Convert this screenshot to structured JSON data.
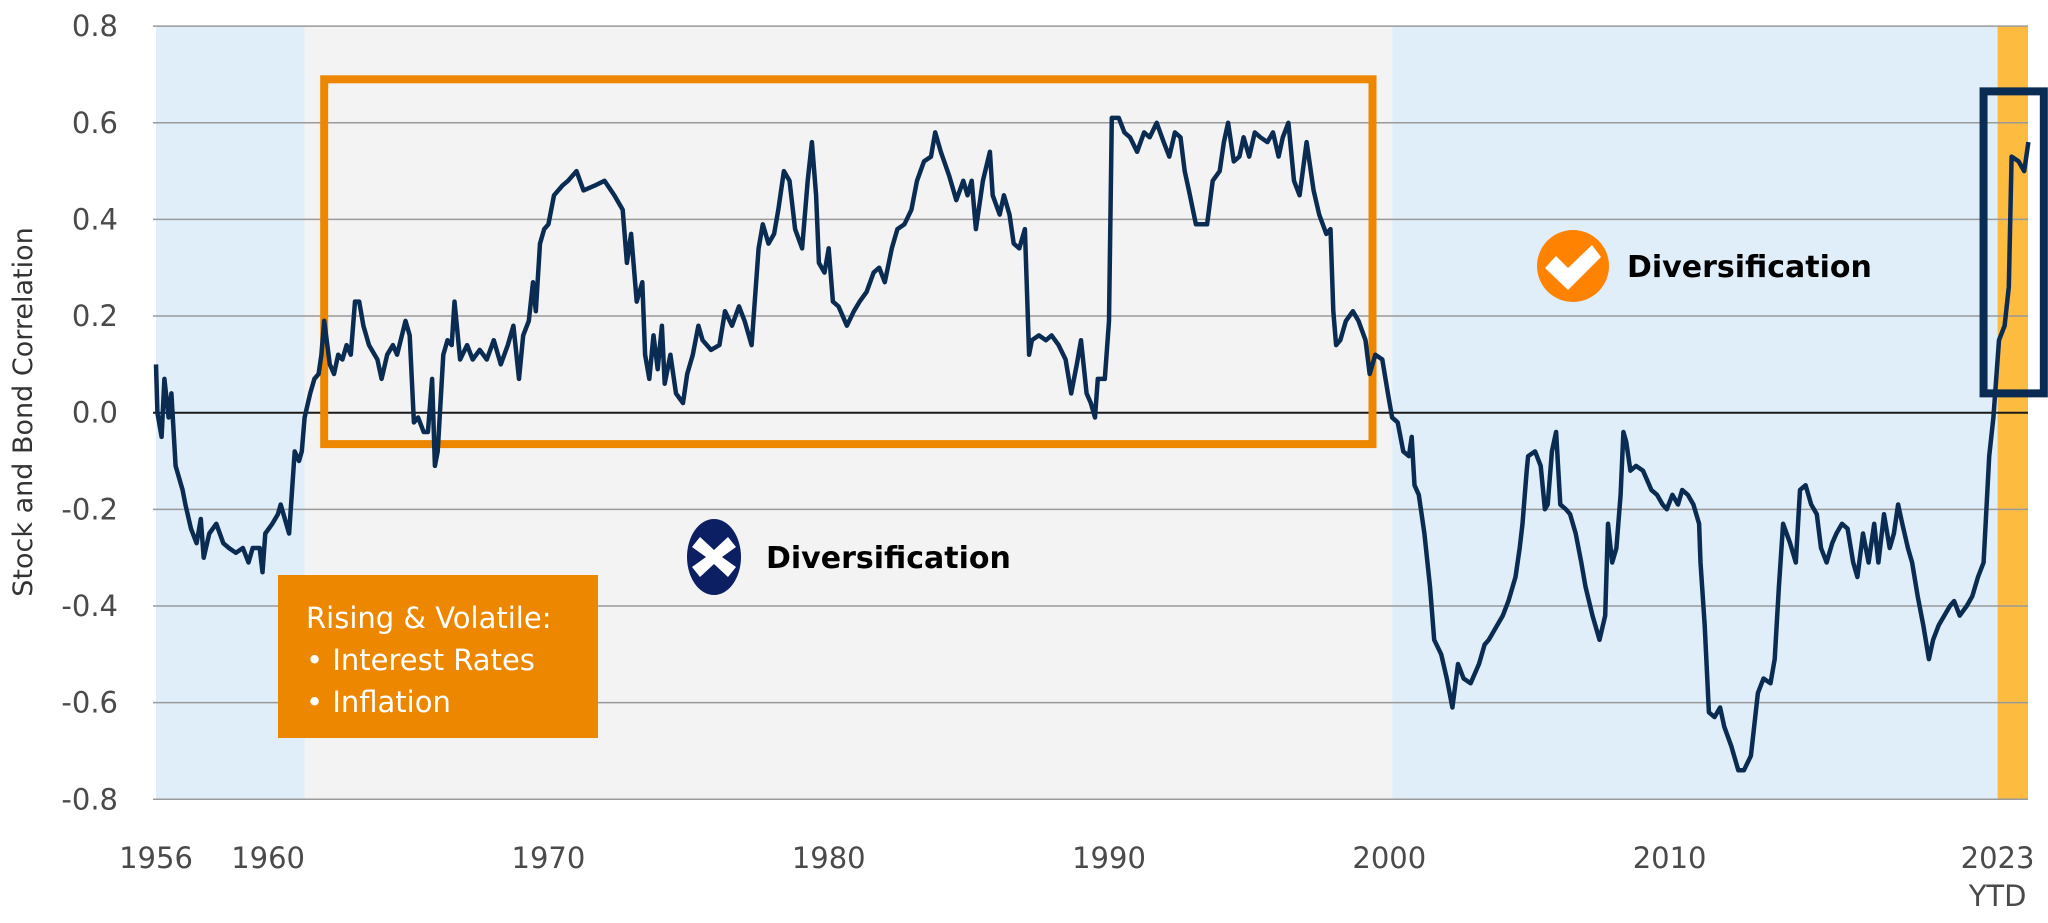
{
  "chart_data": {
    "type": "line",
    "title": "",
    "xlabel": "",
    "ylabel": "Stock and Bond Correlation",
    "ylim": [
      -0.8,
      0.8
    ],
    "xlim": [
      1956,
      2022.8
    ],
    "grid": true,
    "y_ticks": [
      {
        "value": 0.8,
        "label": "0.8"
      },
      {
        "value": 0.6,
        "label": "0.6"
      },
      {
        "value": 0.4,
        "label": "0.4"
      },
      {
        "value": 0.2,
        "label": "0.2"
      },
      {
        "value": 0.0,
        "label": "0.0"
      },
      {
        "value": -0.2,
        "label": "-0.2"
      },
      {
        "value": -0.4,
        "label": "-0.4"
      },
      {
        "value": -0.6,
        "label": "-0.6"
      },
      {
        "value": -0.8,
        "label": "-0.8"
      }
    ],
    "x_ticks": [
      {
        "value": 1956,
        "label": "1956"
      },
      {
        "value": 1960,
        "label": "1960"
      },
      {
        "value": 1970,
        "label": "1970"
      },
      {
        "value": 1980,
        "label": "1980"
      },
      {
        "value": 1990,
        "label": "1990"
      },
      {
        "value": 2000,
        "label": "2000"
      },
      {
        "value": 2010,
        "label": "2010"
      }
    ],
    "last_tick": {
      "label": "2023",
      "sublabel": "YTD"
    },
    "colors": {
      "line": "#0b2c52",
      "region_blue": "#e0eef9",
      "region_gray": "#f3f3f3",
      "region_ytd": "#fdbb40",
      "highlight_orange": "#ee8700",
      "highlight_navy": "#0b2c52",
      "grid": "#9a9a9a",
      "zero_line": "#1a1a1a"
    },
    "regions": [
      {
        "from": 1956,
        "to": 1961.3,
        "kind": "diversification"
      },
      {
        "from": 1961.3,
        "to": 2000.1,
        "kind": "no-diversification"
      },
      {
        "from": 2000.1,
        "to": 2021.7,
        "kind": "diversification"
      },
      {
        "from": 2021.7,
        "to": 2022.8,
        "kind": "ytd"
      }
    ],
    "highlight_boxes": [
      {
        "name": "rising-rates-era",
        "x": [
          1962.0,
          1999.4
        ],
        "y": [
          -0.065,
          0.69
        ],
        "color": "#ee8700"
      },
      {
        "name": "recent-period",
        "x": [
          2021.2,
          2023.35
        ],
        "y": [
          0.04,
          0.665
        ],
        "color": "#0b2c52"
      }
    ],
    "series": [
      {
        "x": [
          1956.0,
          1956.05,
          1956.2,
          1956.3,
          1956.45,
          1956.55,
          1956.7,
          1956.95,
          1957.05,
          1957.25,
          1957.45,
          1957.6,
          1957.7,
          1957.9,
          1958.15,
          1958.4,
          1958.6,
          1958.85,
          1959.1,
          1959.3,
          1959.45,
          1959.7,
          1959.8,
          1959.9,
          1960.15,
          1960.35,
          1960.45,
          1960.55,
          1960.75,
          1960.95,
          1961.1,
          1961.2,
          1961.3,
          1961.5,
          1961.65,
          1961.8,
          1961.9,
          1962.0,
          1962.2,
          1962.35,
          1962.5,
          1962.65,
          1962.8,
          1962.95,
          1963.1,
          1963.25,
          1963.4,
          1963.6,
          1963.9,
          1964.05,
          1964.25,
          1964.45,
          1964.6,
          1964.9,
          1965.05,
          1965.2,
          1965.35,
          1965.55,
          1965.7,
          1965.85,
          1965.95,
          1966.05,
          1966.25,
          1966.4,
          1966.55,
          1966.65,
          1966.85,
          1967.1,
          1967.3,
          1967.55,
          1967.8,
          1968.05,
          1968.3,
          1968.55,
          1968.75,
          1968.95,
          1969.1,
          1969.3,
          1969.45,
          1969.55,
          1969.7,
          1969.85,
          1970.0,
          1970.2,
          1970.5,
          1970.7,
          1971.0,
          1971.25,
          1971.65,
          1972.0,
          1972.35,
          1972.65,
          1972.8,
          1972.95,
          1973.15,
          1973.35,
          1973.45,
          1973.6,
          1973.75,
          1973.9,
          1974.05,
          1974.15,
          1974.35,
          1974.55,
          1974.8,
          1974.95,
          1975.15,
          1975.35,
          1975.5,
          1975.8,
          1976.1,
          1976.3,
          1976.55,
          1976.8,
          1977.0,
          1977.25,
          1977.5,
          1977.65,
          1977.85,
          1978.05,
          1978.2,
          1978.4,
          1978.6,
          1978.8,
          1979.05,
          1979.25,
          1979.4,
          1979.55,
          1979.65,
          1979.85,
          1980.0,
          1980.15,
          1980.35,
          1980.65,
          1980.9,
          1981.1,
          1981.35,
          1981.6,
          1981.8,
          1982.0,
          1982.25,
          1982.45,
          1982.7,
          1982.95,
          1983.15,
          1983.4,
          1983.65,
          1983.8,
          1984.0,
          1984.3,
          1984.55,
          1984.8,
          1984.95,
          1985.1,
          1985.25,
          1985.5,
          1985.75,
          1985.85,
          1986.1,
          1986.25,
          1986.45,
          1986.6,
          1986.8,
          1987.0,
          1987.15,
          1987.25,
          1987.5,
          1987.75,
          1987.95,
          1988.2,
          1988.45,
          1988.65,
          1988.85,
          1989.0,
          1989.2,
          1989.35,
          1989.5,
          1989.6,
          1989.85,
          1990.0,
          1990.1,
          1990.35,
          1990.55,
          1990.75,
          1991.0,
          1991.25,
          1991.45,
          1991.7,
          1991.95,
          1992.15,
          1992.35,
          1992.55,
          1992.7,
          1992.85,
          1993.1,
          1993.3,
          1993.5,
          1993.7,
          1993.95,
          1994.1,
          1994.25,
          1994.45,
          1994.65,
          1994.8,
          1995.0,
          1995.2,
          1995.4,
          1995.65,
          1995.85,
          1996.05,
          1996.2,
          1996.4,
          1996.6,
          1996.8,
          1997.05,
          1997.3,
          1997.5,
          1997.75,
          1997.9,
          1998.0,
          1998.1,
          1998.25,
          1998.45,
          1998.7,
          1998.9,
          1999.15,
          1999.3,
          1999.5,
          1999.75,
          1999.95,
          2000.1,
          2000.3,
          2000.5,
          2000.7,
          2000.8,
          2000.9,
          2001.05,
          2001.25,
          2001.45,
          2001.6,
          2001.85,
          2002.05,
          2002.25,
          2002.45,
          2002.65,
          2002.9,
          2003.2,
          2003.4,
          2003.55,
          2003.85,
          2004.05,
          2004.25,
          2004.5,
          2004.65,
          2004.75,
          2004.9,
          2004.95,
          2005.2,
          2005.4,
          2005.55,
          2005.65,
          2005.8,
          2005.95,
          2006.1,
          2006.3,
          2006.45,
          2006.65,
          2006.85,
          2007.0,
          2007.25,
          2007.5,
          2007.7,
          2007.8,
          2007.95,
          2008.1,
          2008.25,
          2008.35,
          2008.45,
          2008.6,
          2008.8,
          2009.05,
          2009.35,
          2009.55,
          2009.75,
          2009.9,
          2010.1,
          2010.3,
          2010.45,
          2010.65,
          2010.85,
          2011.05,
          2011.1,
          2011.25,
          2011.4,
          2011.6,
          2011.8,
          2011.95,
          2012.2,
          2012.45,
          2012.65,
          2012.9,
          2013.15,
          2013.35,
          2013.6,
          2013.75,
          2013.9,
          2014.05,
          2014.3,
          2014.5,
          2014.65,
          2014.85,
          2015.05,
          2015.25,
          2015.4,
          2015.6,
          2015.8,
          2015.95,
          2016.15,
          2016.35,
          2016.55,
          2016.7,
          2016.9,
          2017.1,
          2017.3,
          2017.45,
          2017.65,
          2017.85,
          2018.0,
          2018.15,
          2018.3,
          2018.5,
          2018.65,
          2018.85,
          2019.05,
          2019.25,
          2019.4,
          2019.6,
          2019.8,
          2020.0,
          2020.15,
          2020.35,
          2020.6,
          2020.8,
          2021.0,
          2021.2,
          2021.4,
          2021.55,
          2021.75,
          2021.95,
          2022.1,
          2022.2,
          2022.45,
          2022.65,
          2022.8
        ],
        "y": [
          0.1,
          0.0,
          -0.05,
          0.07,
          -0.01,
          0.04,
          -0.11,
          -0.16,
          -0.19,
          -0.24,
          -0.27,
          -0.22,
          -0.3,
          -0.25,
          -0.23,
          -0.27,
          -0.28,
          -0.29,
          -0.28,
          -0.31,
          -0.28,
          -0.28,
          -0.33,
          -0.25,
          -0.23,
          -0.21,
          -0.19,
          -0.21,
          -0.25,
          -0.08,
          -0.1,
          -0.08,
          -0.01,
          0.04,
          0.07,
          0.08,
          0.12,
          0.19,
          0.1,
          0.08,
          0.12,
          0.11,
          0.14,
          0.12,
          0.23,
          0.23,
          0.18,
          0.14,
          0.11,
          0.07,
          0.12,
          0.14,
          0.12,
          0.19,
          0.16,
          -0.02,
          -0.01,
          -0.04,
          -0.04,
          0.07,
          -0.11,
          -0.08,
          0.12,
          0.15,
          0.14,
          0.23,
          0.11,
          0.14,
          0.11,
          0.13,
          0.11,
          0.15,
          0.1,
          0.14,
          0.18,
          0.07,
          0.16,
          0.19,
          0.27,
          0.21,
          0.35,
          0.38,
          0.39,
          0.45,
          0.47,
          0.48,
          0.5,
          0.46,
          0.47,
          0.48,
          0.45,
          0.42,
          0.31,
          0.37,
          0.23,
          0.27,
          0.12,
          0.07,
          0.16,
          0.09,
          0.18,
          0.06,
          0.12,
          0.04,
          0.02,
          0.08,
          0.12,
          0.18,
          0.15,
          0.13,
          0.14,
          0.21,
          0.18,
          0.22,
          0.19,
          0.14,
          0.34,
          0.39,
          0.35,
          0.37,
          0.42,
          0.5,
          0.48,
          0.38,
          0.34,
          0.48,
          0.56,
          0.45,
          0.31,
          0.29,
          0.34,
          0.23,
          0.22,
          0.18,
          0.21,
          0.23,
          0.25,
          0.29,
          0.3,
          0.27,
          0.34,
          0.38,
          0.39,
          0.42,
          0.48,
          0.52,
          0.53,
          0.58,
          0.54,
          0.49,
          0.44,
          0.48,
          0.45,
          0.48,
          0.38,
          0.48,
          0.54,
          0.45,
          0.41,
          0.45,
          0.41,
          0.35,
          0.34,
          0.38,
          0.12,
          0.15,
          0.16,
          0.15,
          0.16,
          0.14,
          0.11,
          0.04,
          0.1,
          0.15,
          0.04,
          0.02,
          -0.01,
          0.07,
          0.07,
          0.19,
          0.61,
          0.61,
          0.58,
          0.57,
          0.54,
          0.58,
          0.57,
          0.6,
          0.56,
          0.53,
          0.58,
          0.57,
          0.5,
          0.46,
          0.39,
          0.39,
          0.39,
          0.48,
          0.5,
          0.56,
          0.6,
          0.52,
          0.53,
          0.57,
          0.53,
          0.58,
          0.57,
          0.56,
          0.58,
          0.53,
          0.57,
          0.6,
          0.48,
          0.45,
          0.56,
          0.46,
          0.41,
          0.37,
          0.38,
          0.21,
          0.14,
          0.15,
          0.19,
          0.21,
          0.19,
          0.15,
          0.08,
          0.12,
          0.11,
          0.04,
          -0.01,
          -0.02,
          -0.08,
          -0.09,
          -0.05,
          -0.15,
          -0.17,
          -0.25,
          -0.36,
          -0.47,
          -0.5,
          -0.55,
          -0.61,
          -0.52,
          -0.55,
          -0.56,
          -0.52,
          -0.48,
          -0.47,
          -0.44,
          -0.42,
          -0.39,
          -0.34,
          -0.28,
          -0.23,
          -0.12,
          -0.09,
          -0.08,
          -0.11,
          -0.2,
          -0.19,
          -0.08,
          -0.04,
          -0.19,
          -0.2,
          -0.21,
          -0.25,
          -0.31,
          -0.36,
          -0.42,
          -0.47,
          -0.42,
          -0.23,
          -0.31,
          -0.28,
          -0.17,
          -0.04,
          -0.06,
          -0.12,
          -0.11,
          -0.12,
          -0.16,
          -0.17,
          -0.19,
          -0.2,
          -0.17,
          -0.19,
          -0.16,
          -0.17,
          -0.19,
          -0.23,
          -0.31,
          -0.44,
          -0.62,
          -0.63,
          -0.61,
          -0.65,
          -0.69,
          -0.74,
          -0.74,
          -0.71,
          -0.58,
          -0.55,
          -0.56,
          -0.51,
          -0.36,
          -0.23,
          -0.27,
          -0.31,
          -0.16,
          -0.15,
          -0.19,
          -0.21,
          -0.28,
          -0.31,
          -0.27,
          -0.25,
          -0.23,
          -0.24,
          -0.31,
          -0.34,
          -0.25,
          -0.31,
          -0.23,
          -0.31,
          -0.21,
          -0.28,
          -0.25,
          -0.19,
          -0.23,
          -0.28,
          -0.31,
          -0.38,
          -0.44,
          -0.51,
          -0.47,
          -0.44,
          -0.42,
          -0.4,
          -0.39,
          -0.42,
          -0.4,
          -0.38,
          -0.34,
          -0.31,
          -0.09,
          -0.01,
          0.15,
          0.18,
          0.26,
          0.53,
          0.52,
          0.5,
          0.56
        ]
      }
    ],
    "annotations": {
      "note_box": {
        "title": "Rising & Volatile:",
        "items": [
          "• Interest Rates",
          "• Inflation"
        ],
        "color": "#ee8700"
      },
      "no_diversification": {
        "label": "Diversification",
        "icon": "x-circle-icon",
        "color": "#0c1f63"
      },
      "diversification": {
        "label": "Diversification",
        "icon": "check-circle-icon",
        "color": "#ff8200"
      }
    }
  }
}
